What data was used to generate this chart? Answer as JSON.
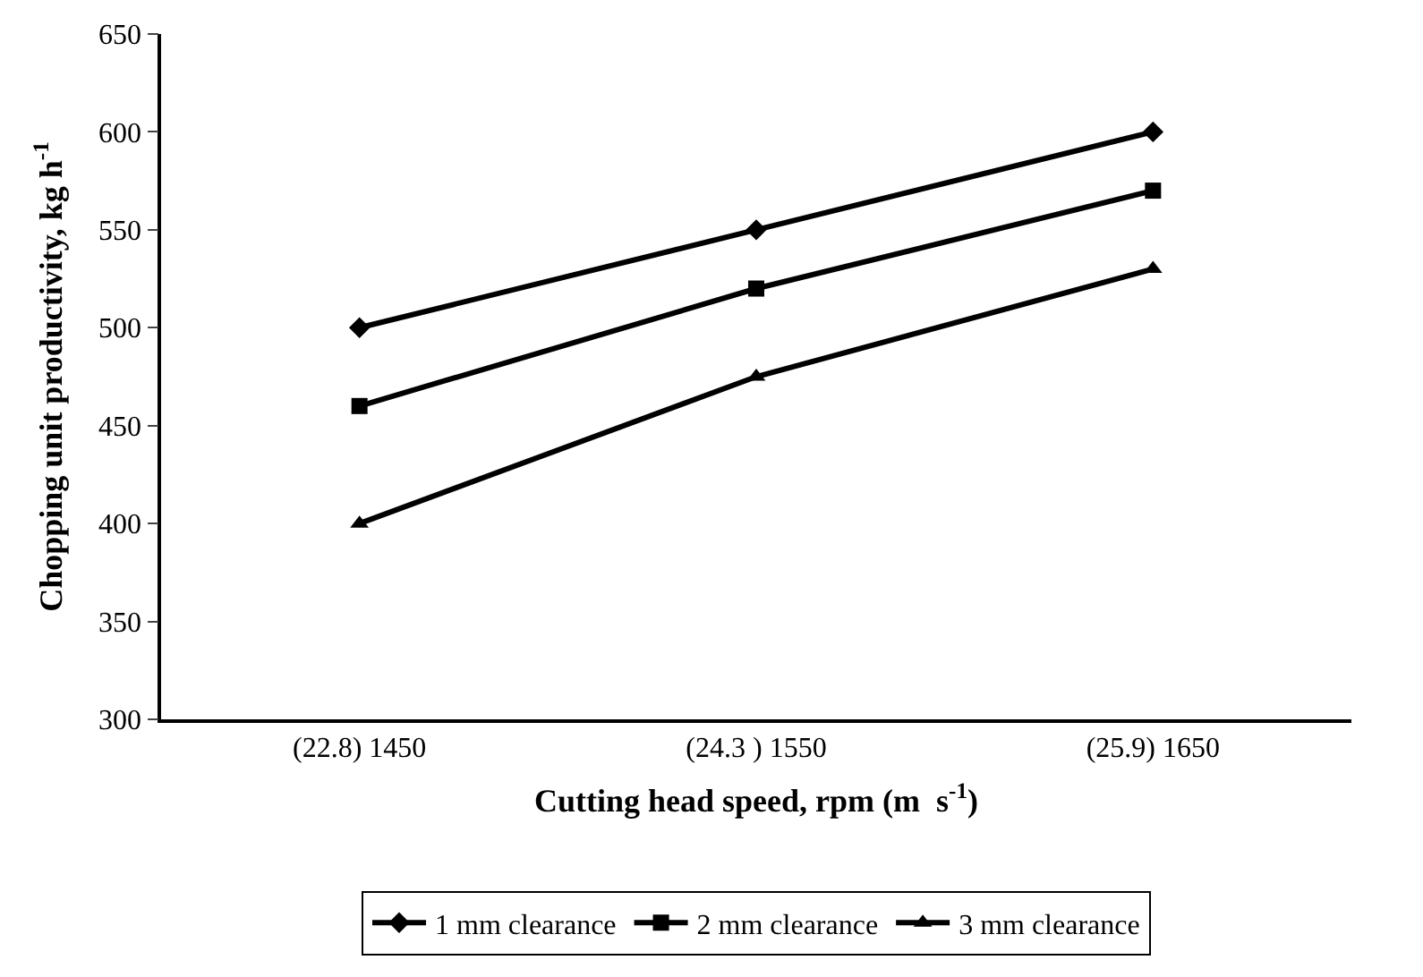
{
  "chart_data": {
    "type": "line",
    "xlabel": "Cutting head speed, rpm (m  s$^{-1}$)",
    "ylabel": "Chopping unit productivity, kg h$^{-1}$",
    "categories": [
      "(22.8) 1450",
      "(24.3 ) 1550",
      "(25.9) 1650"
    ],
    "series": [
      {
        "name": "1 mm clearance",
        "color": "#000000",
        "marker": "diamond",
        "values": [
          500,
          550,
          600
        ]
      },
      {
        "name": "2 mm clearance",
        "color": "#000000",
        "marker": "square",
        "values": [
          460,
          520,
          570
        ]
      },
      {
        "name": "3 mm clearance",
        "color": "#000000",
        "marker": "triangle",
        "values": [
          400,
          475,
          530
        ]
      }
    ],
    "ylim": [
      300,
      650
    ],
    "yticks": [
      300,
      350,
      400,
      450,
      500,
      550,
      600,
      650
    ],
    "grid": false,
    "legend": "bottom",
    "line_style": "solid"
  }
}
